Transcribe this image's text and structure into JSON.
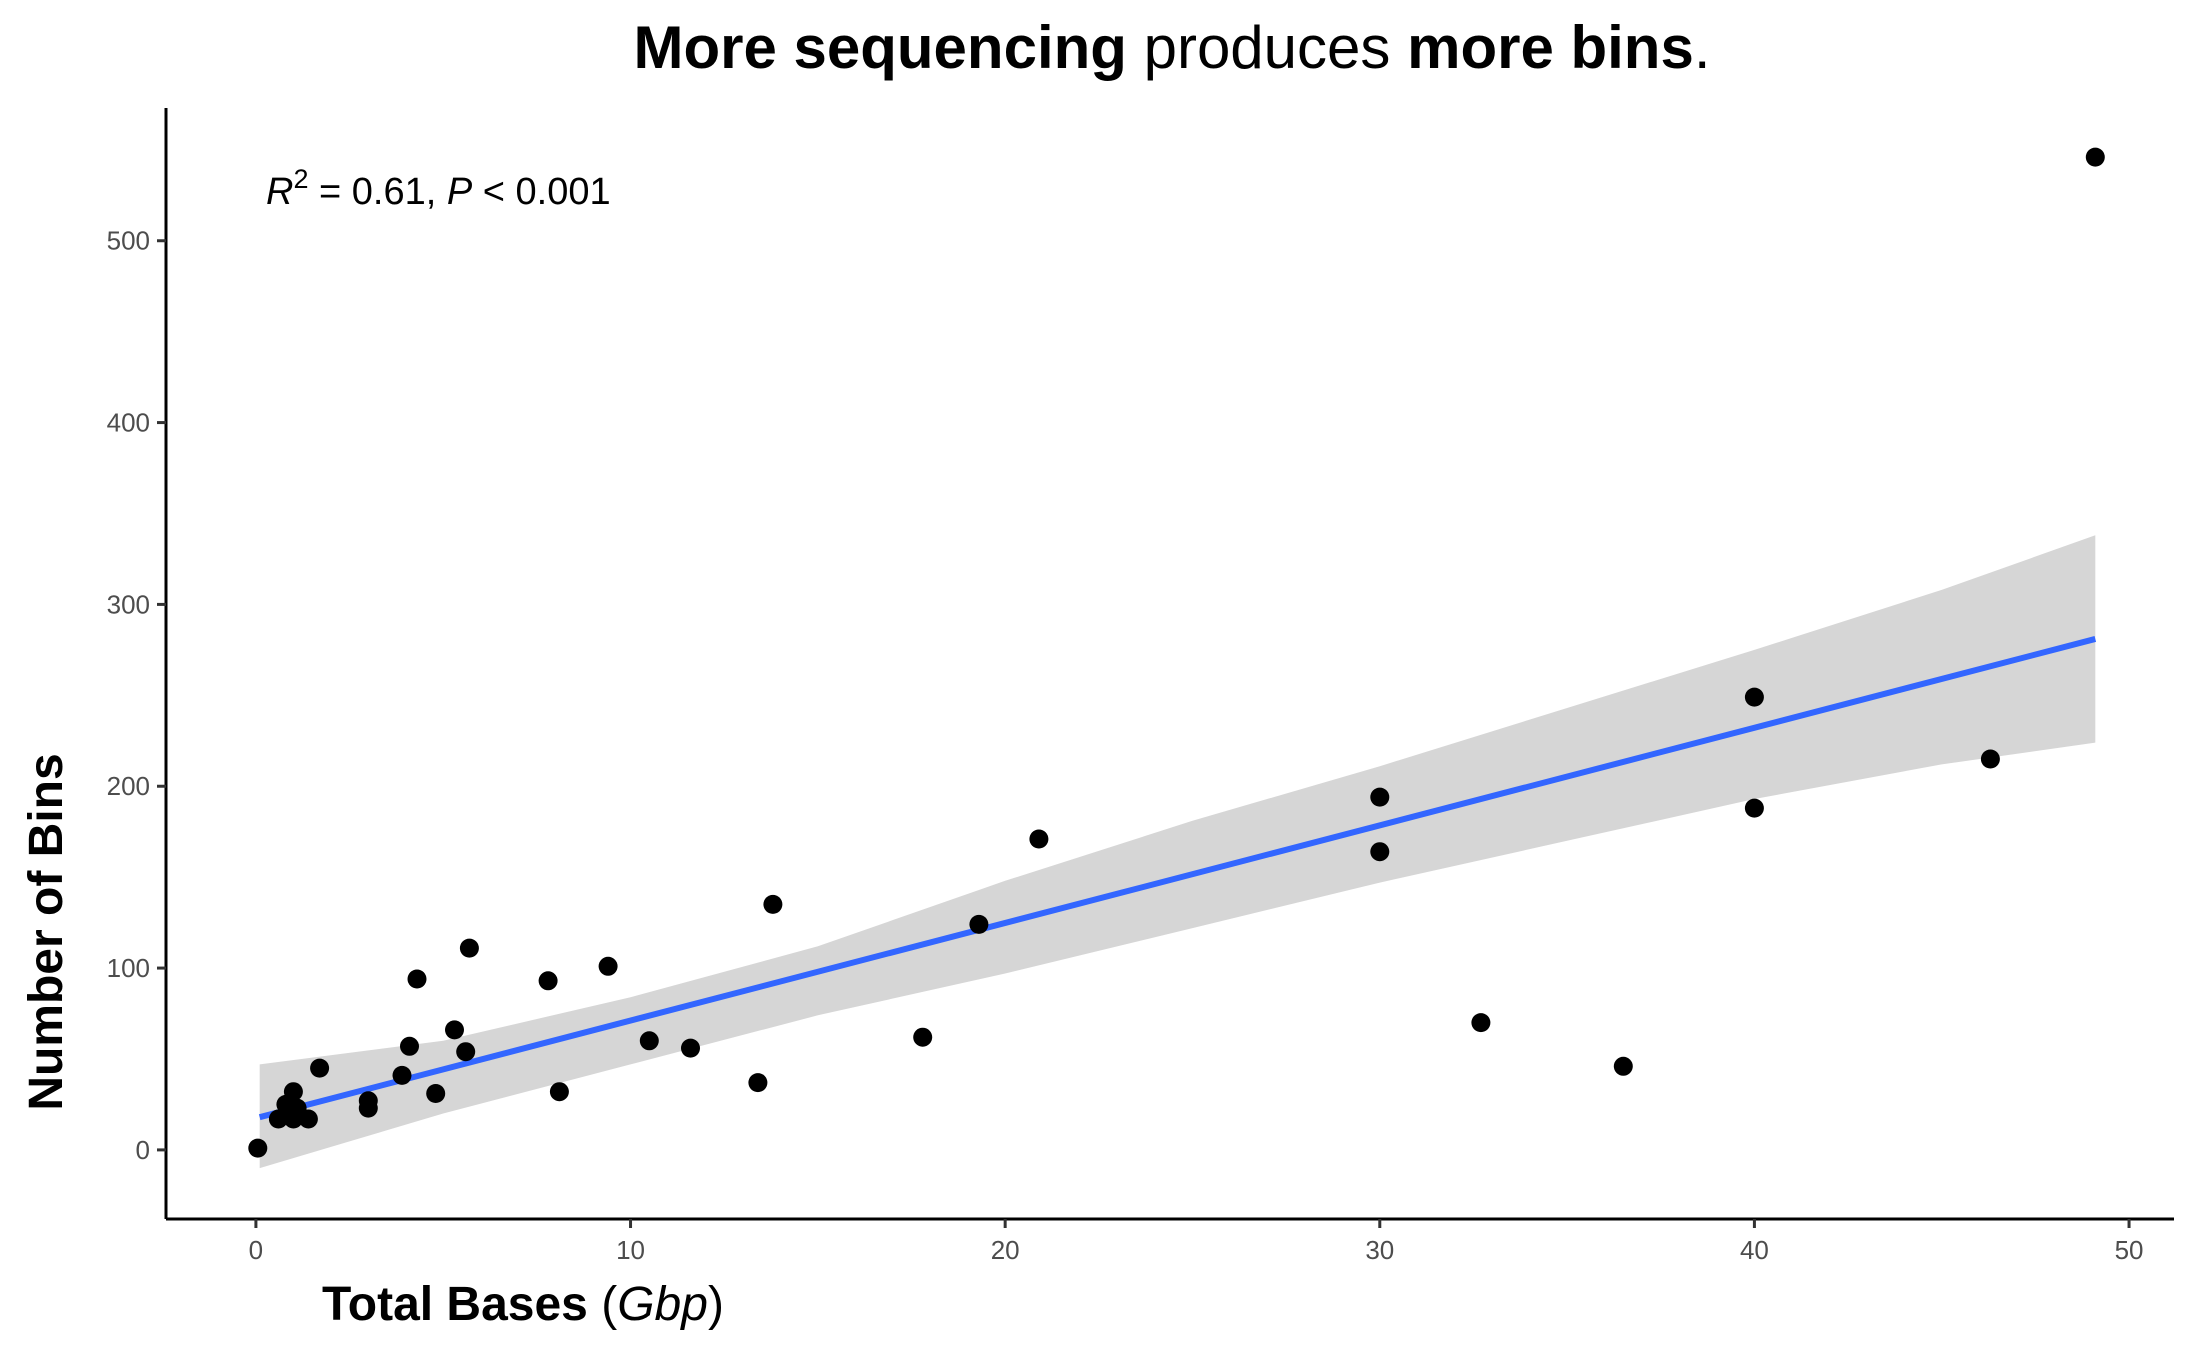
{
  "chart_data": {
    "type": "scatter",
    "title": {
      "segments": [
        {
          "text": "More sequencing",
          "bold": true
        },
        {
          "text": " produces ",
          "bold": false
        },
        {
          "text": "more bins",
          "bold": true
        },
        {
          "text": ".",
          "bold": false
        }
      ]
    },
    "xlabel": {
      "main": "Total Bases",
      "open": " (",
      "unit": "Gbp",
      "close": ")"
    },
    "ylabel": "Number of Bins",
    "xlim": [
      -2.4,
      51.2
    ],
    "ylim": [
      -38,
      573
    ],
    "xticks": [
      0,
      10,
      20,
      30,
      40,
      50
    ],
    "yticks": [
      0,
      100,
      200,
      300,
      400,
      500
    ],
    "annotation": {
      "r": "R",
      "sup": "2",
      "eq": " = 0.61, ",
      "p": "P",
      "rest": " < 0.001"
    },
    "fit": {
      "method": "linear",
      "x_range": [
        0.1,
        49.1
      ],
      "line": [
        [
          0.1,
          18
        ],
        [
          49.1,
          281
        ]
      ],
      "band_upper": [
        [
          0.1,
          47
        ],
        [
          5,
          60
        ],
        [
          10,
          84
        ],
        [
          15,
          112
        ],
        [
          20,
          148
        ],
        [
          25,
          181
        ],
        [
          30,
          211
        ],
        [
          35,
          243
        ],
        [
          40,
          275
        ],
        [
          45,
          308
        ],
        [
          49.1,
          338
        ]
      ],
      "band_lower": [
        [
          0.1,
          -10
        ],
        [
          5,
          20
        ],
        [
          10,
          47
        ],
        [
          15,
          74
        ],
        [
          20,
          97
        ],
        [
          25,
          122
        ],
        [
          30,
          147
        ],
        [
          35,
          170
        ],
        [
          40,
          193
        ],
        [
          45,
          212
        ],
        [
          49.1,
          224
        ]
      ]
    },
    "points": [
      {
        "x": 0.05,
        "y": 1
      },
      {
        "x": 0.6,
        "y": 17
      },
      {
        "x": 0.8,
        "y": 25
      },
      {
        "x": 1.0,
        "y": 17
      },
      {
        "x": 1.0,
        "y": 32
      },
      {
        "x": 1.1,
        "y": 23
      },
      {
        "x": 1.4,
        "y": 17
      },
      {
        "x": 1.7,
        "y": 45
      },
      {
        "x": 3.0,
        "y": 23
      },
      {
        "x": 3.0,
        "y": 27
      },
      {
        "x": 3.9,
        "y": 41
      },
      {
        "x": 4.1,
        "y": 57
      },
      {
        "x": 4.3,
        "y": 94
      },
      {
        "x": 4.8,
        "y": 31
      },
      {
        "x": 5.3,
        "y": 66
      },
      {
        "x": 5.6,
        "y": 54
      },
      {
        "x": 5.7,
        "y": 111
      },
      {
        "x": 7.8,
        "y": 93
      },
      {
        "x": 8.1,
        "y": 32
      },
      {
        "x": 9.4,
        "y": 101
      },
      {
        "x": 10.5,
        "y": 60
      },
      {
        "x": 11.6,
        "y": 56
      },
      {
        "x": 13.4,
        "y": 37
      },
      {
        "x": 13.8,
        "y": 135
      },
      {
        "x": 17.8,
        "y": 62
      },
      {
        "x": 19.3,
        "y": 124
      },
      {
        "x": 20.9,
        "y": 171
      },
      {
        "x": 30.0,
        "y": 194
      },
      {
        "x": 30.0,
        "y": 164
      },
      {
        "x": 32.7,
        "y": 70
      },
      {
        "x": 36.5,
        "y": 46
      },
      {
        "x": 40.0,
        "y": 249
      },
      {
        "x": 40.0,
        "y": 188
      },
      {
        "x": 46.3,
        "y": 215
      },
      {
        "x": 49.1,
        "y": 546
      }
    ],
    "colors": {
      "point": "#000000",
      "line": "#3366FF",
      "band": "#D6D6D6",
      "axis": "#000000",
      "tick_text": "#4d4d4d"
    }
  }
}
